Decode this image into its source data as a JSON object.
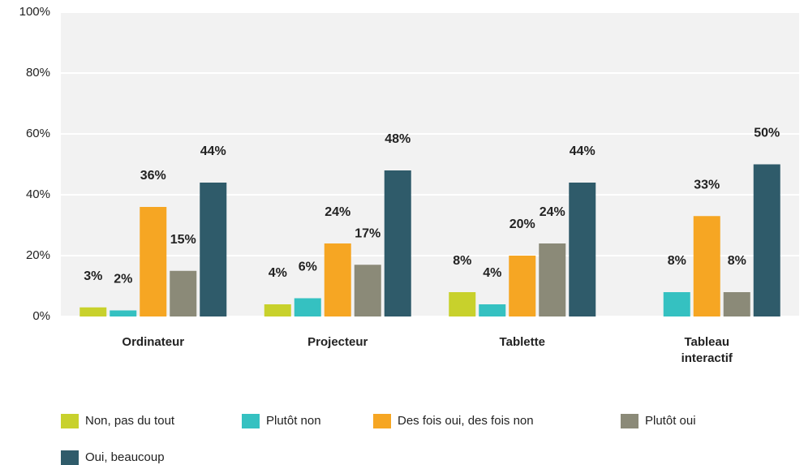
{
  "chart_data": {
    "type": "bar",
    "categories": [
      "Ordinateur",
      "Projecteur",
      "Tablette",
      "Tableau interactif"
    ],
    "series": [
      {
        "name": "Non, pas du tout",
        "color": "#c8d12c",
        "values": [
          3,
          4,
          8,
          null
        ],
        "value_labels": [
          "3%",
          "4%",
          "8%",
          null
        ]
      },
      {
        "name": "Plutôt non",
        "color": "#35c1c1",
        "values": [
          2,
          6,
          4,
          8
        ],
        "value_labels": [
          "2%",
          "6%",
          "4%",
          "8%"
        ]
      },
      {
        "name": "Des fois oui, des fois non",
        "color": "#f6a623",
        "values": [
          36,
          24,
          20,
          33
        ],
        "value_labels": [
          "36%",
          "24%",
          "20%",
          "33%"
        ]
      },
      {
        "name": "Plutôt oui",
        "color": "#8b8a78",
        "values": [
          15,
          17,
          24,
          8
        ],
        "value_labels": [
          "15%",
          "17%",
          "24%",
          "8%"
        ]
      },
      {
        "name": "Oui, beaucoup",
        "color": "#2f5b6a",
        "values": [
          44,
          48,
          44,
          50
        ],
        "value_labels": [
          "44%",
          "48%",
          "44%",
          "50%"
        ]
      }
    ],
    "ylim": [
      0,
      100
    ],
    "yticks": [
      {
        "value": 0,
        "label": "0%"
      },
      {
        "value": 20,
        "label": "20%"
      },
      {
        "value": 40,
        "label": "40%"
      },
      {
        "value": 60,
        "label": "60%"
      },
      {
        "value": 80,
        "label": "80%"
      },
      {
        "value": 100,
        "label": "100%"
      }
    ],
    "grid": true
  }
}
